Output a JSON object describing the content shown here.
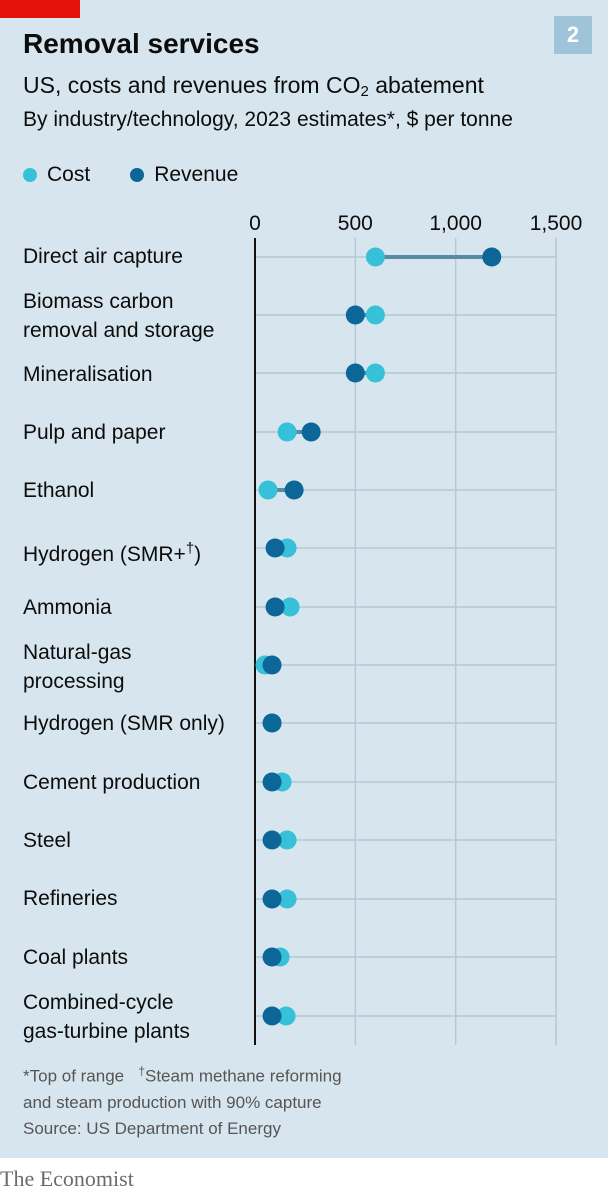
{
  "header": {
    "title": "Removal services",
    "subtitle_pre": "US, costs and revenues from CO",
    "subtitle_sub": "2",
    "subtitle_post": " abatement",
    "description": "By industry/technology, 2023 estimates*, $ per tonne",
    "chart_number": "2"
  },
  "legend": {
    "cost": "Cost",
    "revenue": "Revenue"
  },
  "colors": {
    "cost": "#36c1d9",
    "revenue": "#0c6697",
    "connector": "#5a8aa3",
    "background": "#d7e6ee",
    "grid": "#b4c9d4",
    "brand_red": "#e3120b"
  },
  "chart_data": {
    "type": "dot",
    "xlim": [
      0,
      1500
    ],
    "ticks": [
      0,
      500,
      1000,
      1500
    ],
    "tick_labels": [
      "0",
      "500",
      "1,000",
      "1,500"
    ],
    "categories": [
      "Direct air capture",
      "Biomass carbon removal and storage",
      "Mineralisation",
      "Pulp and paper",
      "Ethanol",
      "Hydrogen (SMR+†)",
      "Ammonia",
      "Natural-gas processing",
      "Hydrogen (SMR only)",
      "Cement production",
      "Steel",
      "Refineries",
      "Coal plants",
      "Combined-cycle gas-turbine plants"
    ],
    "series": [
      {
        "name": "Cost",
        "values": [
          600,
          600,
          600,
          160,
          65,
          160,
          175,
          50,
          85,
          135,
          160,
          160,
          125,
          155
        ]
      },
      {
        "name": "Revenue",
        "values": [
          1180,
          500,
          500,
          280,
          195,
          100,
          100,
          85,
          85,
          85,
          85,
          85,
          85,
          85
        ]
      }
    ]
  },
  "labels": {
    "row1": "Direct air capture",
    "row2_line1": "Biomass carbon",
    "row2_line2": "removal and storage",
    "row3": "Mineralisation",
    "row4": "Pulp and paper",
    "row5": "Ethanol",
    "row6_pre": "Hydrogen (SMR+",
    "row6_sup": "†",
    "row6_post": ")",
    "row7": "Ammonia",
    "row8_line1": "Natural-gas",
    "row8_line2": "processing",
    "row9": "Hydrogen (SMR only)",
    "row10": "Cement production",
    "row11": "Steel",
    "row12": "Refineries",
    "row13": "Coal plants",
    "row14_line1": "Combined-cycle",
    "row14_line2": "gas-turbine plants"
  },
  "footnotes": {
    "star": "*Top of range",
    "dagger_mark": "†",
    "dagger_line1": "Steam methane reforming",
    "dagger_line2": "and steam production with 90% capture",
    "source": "Source: US Department of Energy"
  },
  "brand": "The Economist"
}
